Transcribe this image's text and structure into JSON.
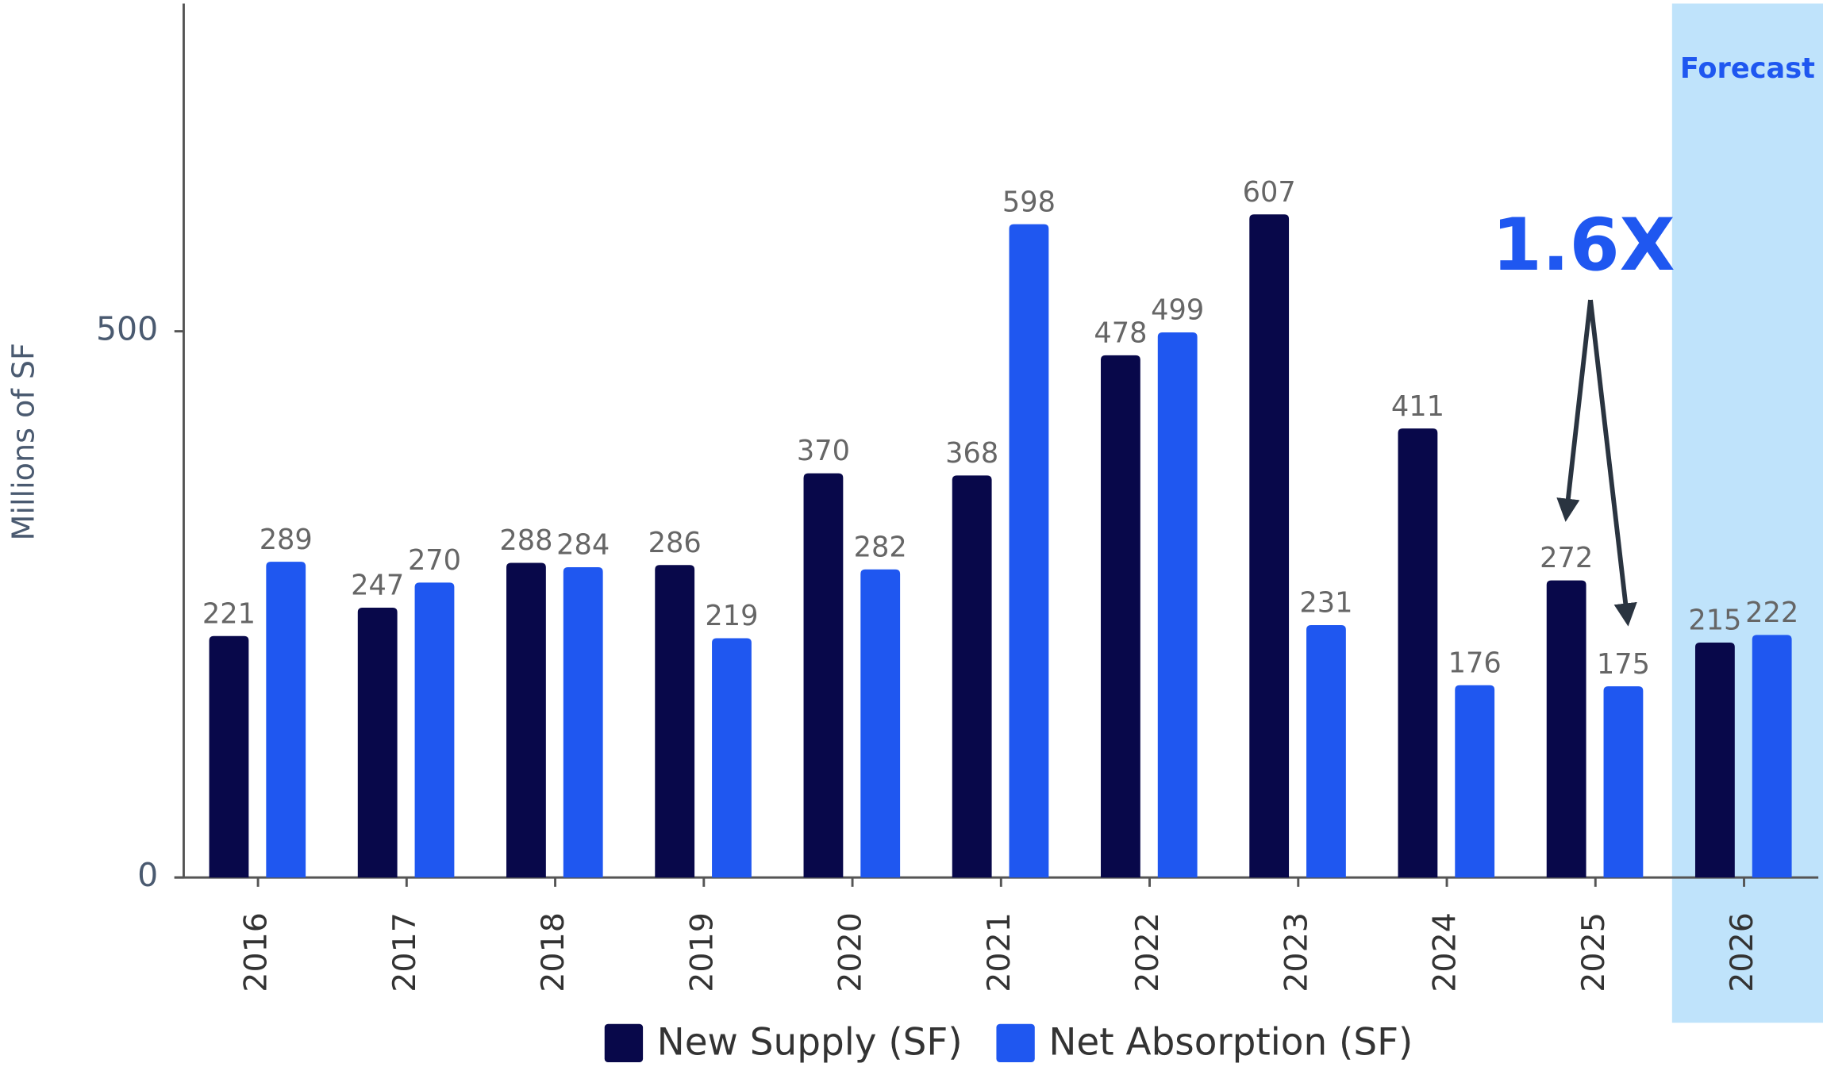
{
  "chart_data": {
    "type": "bar",
    "y_label": "Millions of SF",
    "categories": [
      "2016",
      "2017",
      "2018",
      "2019",
      "2020",
      "2021",
      "2022",
      "2023",
      "2024",
      "2025",
      "2026"
    ],
    "series": [
      {
        "name": "New Supply (SF)",
        "color": "#08084a",
        "values": [
          221,
          247,
          288,
          286,
          370,
          368,
          478,
          607,
          411,
          272,
          215
        ]
      },
      {
        "name": "Net Absorption (SF)",
        "color": "#1f57f0",
        "values": [
          289,
          270,
          284,
          219,
          282,
          598,
          499,
          231,
          176,
          175,
          222
        ]
      }
    ],
    "ylim": [
      0,
      800
    ],
    "yticks": [
      0,
      500
    ],
    "grid": false,
    "forecast": {
      "label": "Forecast",
      "from": "2026"
    },
    "annotation": "1.6X"
  }
}
